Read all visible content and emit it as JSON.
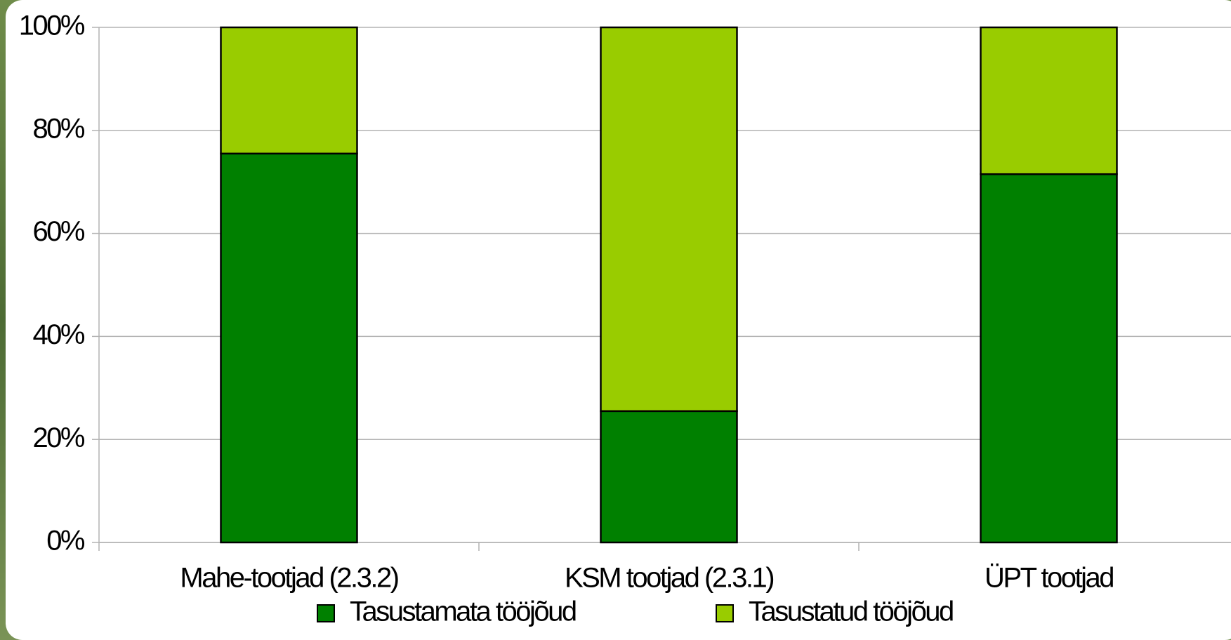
{
  "chart_data": {
    "type": "stacked_bar",
    "categories": [
      "Mahe-tootjad (2.3.2)",
      "KSM tootjad (2.3.1)",
      "ÜPT tootjad"
    ],
    "series": [
      {
        "name": "Tasustamata tööjõud",
        "color": "#008000",
        "values": [
          75.5,
          25.5,
          71.5
        ]
      },
      {
        "name": "Tasustatud tööjõud",
        "color": "#99cc00",
        "values": [
          24.5,
          74.5,
          28.5
        ]
      }
    ],
    "ylim": [
      0,
      100
    ],
    "yticks": [
      {
        "value": 0,
        "label": "0%"
      },
      {
        "value": 20,
        "label": "20%"
      },
      {
        "value": 40,
        "label": "40%"
      },
      {
        "value": 60,
        "label": "60%"
      },
      {
        "value": 80,
        "label": "80%"
      },
      {
        "value": 100,
        "label": "100%"
      }
    ],
    "grid": true
  }
}
